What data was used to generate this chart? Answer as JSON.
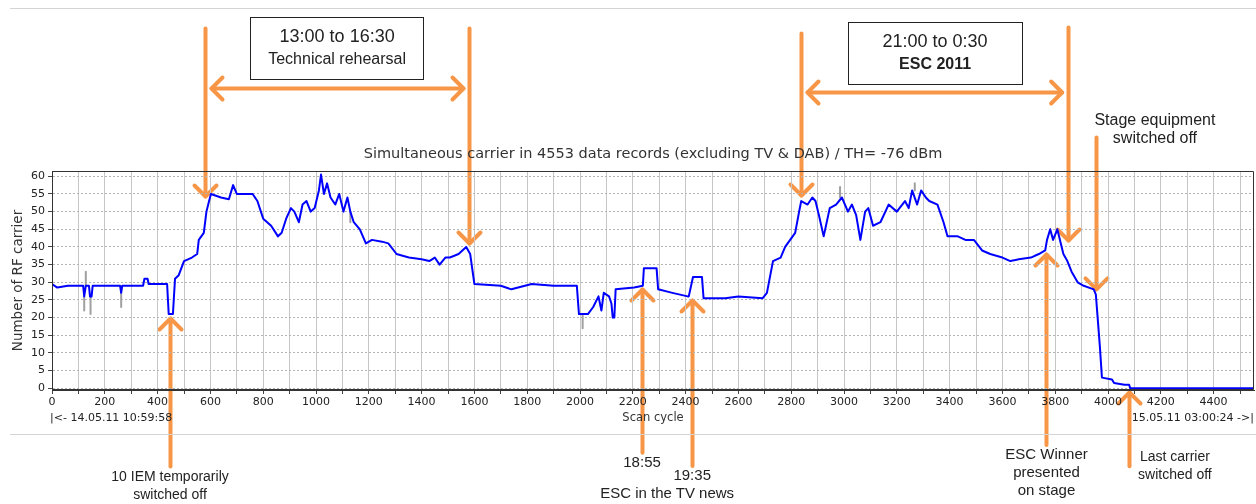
{
  "chart_data": {
    "type": "line",
    "title": "Simultaneous carrier in 4553 data records (excluding TV & DAB) / TH= -76 dBm",
    "xlabel": "Scan cycle",
    "ylabel": "Number of RF carrier",
    "xlim": [
      0,
      4553
    ],
    "ylim": [
      -0.5,
      61.5
    ],
    "xticks": [
      0,
      {
        "value": 100,
        "label": null
      },
      200,
      {
        "value": 300,
        "label": null
      },
      400,
      {
        "value": 500,
        "label": null
      },
      600,
      {
        "value": 700,
        "label": null
      },
      800,
      {
        "value": 900,
        "label": null
      },
      1000,
      {
        "value": 1100,
        "label": null
      },
      1200,
      {
        "value": 1300,
        "label": null
      },
      1400,
      {
        "value": 1500,
        "label": null
      },
      1600,
      {
        "value": 1700,
        "label": null
      },
      1800,
      {
        "value": 1900,
        "label": null
      },
      2000,
      {
        "value": 2100,
        "label": null
      },
      2200,
      {
        "value": 2300,
        "label": null
      },
      2400,
      {
        "value": 2500,
        "label": null
      },
      2600,
      {
        "value": 2700,
        "label": null
      },
      2800,
      {
        "value": 2900,
        "label": null
      },
      3000,
      {
        "value": 3100,
        "label": null
      },
      3200,
      {
        "value": 3300,
        "label": null
      },
      3400,
      {
        "value": 3500,
        "label": null
      },
      3600,
      {
        "value": 3700,
        "label": null
      },
      3800,
      {
        "value": 3900,
        "label": null
      },
      4000,
      {
        "value": 4100,
        "label": null
      },
      4200,
      {
        "value": 4300,
        "label": null
      },
      4400,
      {
        "value": 4500,
        "label": null
      }
    ],
    "yticks": [
      0,
      5,
      10,
      15,
      20,
      25,
      30,
      35,
      40,
      45,
      50,
      55,
      60
    ],
    "grid": true,
    "series": [
      {
        "color": "#0000ff",
        "x": [
          0,
          20,
          60,
          118,
          122,
          128,
          140,
          144,
          150,
          154,
          258,
          262,
          266,
          345,
          350,
          362,
          366,
          436,
          442,
          458,
          466,
          480,
          500,
          530,
          550,
          556,
          575,
          585,
          595,
          602,
          640,
          670,
          686,
          700,
          740,
          760,
          778,
          800,
          830,
          856,
          870,
          887,
          905,
          918,
          935,
          949,
          964,
          980,
          995,
          1011,
          1019,
          1030,
          1042,
          1055,
          1073,
          1088,
          1104,
          1119,
          1130,
          1143,
          1166,
          1189,
          1212,
          1250,
          1274,
          1305,
          1352,
          1400,
          1429,
          1450,
          1468,
          1490,
          1507,
          1540,
          1569,
          1584,
          1600,
          1700,
          1740,
          1817,
          1900,
          1988,
          1996,
          2030,
          2050,
          2070,
          2081,
          2090,
          2110,
          2119,
          2124,
          2130,
          2135,
          2205,
          2238,
          2242,
          2290,
          2296,
          2350,
          2408,
          2412,
          2428,
          2462,
          2468,
          2550,
          2600,
          2692,
          2708,
          2731,
          2760,
          2777,
          2815,
          2830,
          2838,
          2862,
          2880,
          2892,
          2905,
          2923,
          2946,
          2970,
          2992,
          3015,
          3030,
          3046,
          3062,
          3080,
          3092,
          3110,
          3138,
          3169,
          3200,
          3231,
          3245,
          3258,
          3277,
          3292,
          3310,
          3323,
          3354,
          3377,
          3392,
          3431,
          3460,
          3492,
          3523,
          3554,
          3600,
          3630,
          3662,
          3708,
          3738,
          3762,
          3769,
          3781,
          3792,
          3808,
          3831,
          3846,
          3862,
          3885,
          3908,
          3946,
          3954,
          3969,
          3977,
          4015,
          4023,
          4062,
          4080,
          4084,
          4552
        ],
        "values": [
          29.5,
          28.5,
          29,
          29,
          26,
          29,
          29,
          26,
          26,
          29,
          29,
          27,
          29,
          29,
          31,
          31,
          29.5,
          29.5,
          21,
          21,
          31,
          32,
          36,
          37,
          38,
          42,
          44,
          50,
          53,
          55,
          54,
          53.5,
          57.5,
          55,
          55,
          55,
          53,
          48,
          46,
          43,
          44,
          48,
          51,
          50,
          47,
          52,
          53,
          50,
          51,
          56,
          60.5,
          55,
          58,
          54,
          52,
          55,
          50,
          54,
          50,
          47,
          45,
          41,
          42,
          41.5,
          41,
          38,
          37,
          36.5,
          36,
          37,
          35,
          37,
          37,
          38,
          40,
          38,
          29.5,
          29,
          28,
          29.5,
          29,
          29,
          21,
          21,
          23,
          26,
          22,
          27,
          26,
          24,
          20,
          20,
          28,
          28.5,
          29,
          34,
          34,
          28,
          27,
          26,
          26,
          31.5,
          31.5,
          25.5,
          25.5,
          26,
          25.5,
          27,
          36,
          37,
          40,
          44,
          50,
          53,
          52,
          54,
          53,
          49,
          43,
          51,
          52,
          54,
          50,
          52,
          49,
          42,
          50,
          51,
          46,
          47,
          52,
          50,
          53,
          51,
          56,
          52,
          56,
          54,
          53,
          52,
          47,
          43,
          43,
          42,
          42,
          39,
          38,
          37,
          36,
          36.5,
          37,
          38,
          39,
          42,
          45,
          42,
          45,
          38,
          36,
          33,
          30,
          29,
          28,
          26.5,
          12,
          3,
          2.5,
          1.5,
          1,
          1,
          0,
          0
        ]
      },
      {
        "color": "#a0a0a0",
        "x": [
          122,
          122,
          null,
          128,
          128,
          null,
          146,
          146,
          null,
          262,
          262,
          null,
          1130,
          1130,
          null,
          2010,
          2010,
          null,
          2985,
          2985,
          null,
          3268,
          3268,
          null
        ],
        "values": [
          26,
          22,
          null,
          29,
          33,
          null,
          26,
          21,
          null,
          27,
          23,
          null,
          50,
          47,
          null,
          21,
          17,
          null,
          54,
          57,
          null,
          56,
          58,
          null
        ]
      }
    ],
    "ref_lines": [
      {
        "axis": "x",
        "value": 580,
        "color": "#f79646"
      },
      {
        "axis": "x",
        "value": 1580,
        "color": "#f79646"
      },
      {
        "axis": "x",
        "value": 2840,
        "color": "#f79646"
      },
      {
        "axis": "x",
        "value": 3850,
        "color": "#f79646"
      }
    ],
    "annotations": [
      "13:00 to 16:30\nTechnical rehearsal",
      "21:00 to 0:30\nESC 2011",
      {
        "text": "10 IEM temporarily\nswitched off",
        "x": 447,
        "y": 21
      },
      {
        "text": "18:55",
        "x": 2235,
        "y": 29
      },
      {
        "text": "19:35",
        "x": 2425,
        "y": 26
      },
      "ESC in the TV news",
      {
        "text": "ESC Winner\npresented\non stage",
        "x": 3767,
        "y": 39
      },
      {
        "text": "Last carrier\nswitched off",
        "x": 4083,
        "y": 0
      },
      {
        "text": "Stage equipment\nswitched off",
        "x": 3958,
        "y": 27
      },
      "|<- 14.05.11 10:59:58",
      "15.05.11 03:00:24 ->|"
    ]
  }
}
